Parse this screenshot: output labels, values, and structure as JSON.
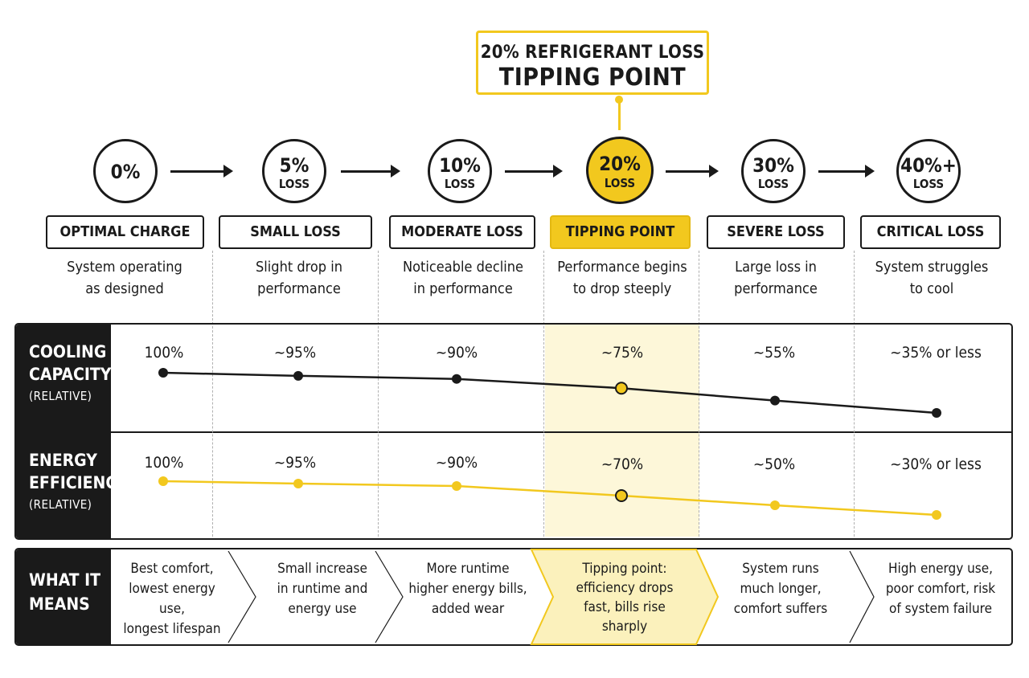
{
  "callout": {
    "line1": "20% REFRIGERANT LOSS",
    "line2": "TIPPING POINT"
  },
  "stages": [
    {
      "pct": "0%",
      "sub": "",
      "name": "OPTIMAL CHARGE",
      "desc1": "System operating",
      "desc2": "as designed",
      "cooling": "100%",
      "efficiency": "100%",
      "mean": [
        "Best comfort,",
        "lowest energy use,",
        "longest lifespan"
      ]
    },
    {
      "pct": "5%",
      "sub": "LOSS",
      "name": "SMALL LOSS",
      "desc1": "Slight drop in",
      "desc2": "performance",
      "cooling": "~95%",
      "efficiency": "~95%",
      "mean": [
        "Small increase",
        "in runtime and",
        "energy use"
      ]
    },
    {
      "pct": "10%",
      "sub": "LOSS",
      "name": "MODERATE LOSS",
      "desc1": "Noticeable decline",
      "desc2": "in performance",
      "cooling": "~90%",
      "efficiency": "~90%",
      "mean": [
        "More runtime",
        "higher energy bills,",
        "added wear"
      ]
    },
    {
      "pct": "20%",
      "sub": "LOSS",
      "name": "TIPPING POINT",
      "desc1": "Performance begins",
      "desc2": "to drop steeply",
      "cooling": "~75%",
      "efficiency": "~70%",
      "mean": [
        "Tipping point:",
        "efficiency drops",
        "fast, bills rise",
        "sharply"
      ]
    },
    {
      "pct": "30%",
      "sub": "LOSS",
      "name": "SEVERE LOSS",
      "desc1": "Large loss in",
      "desc2": "performance",
      "cooling": "~55%",
      "efficiency": "~50%",
      "mean": [
        "System runs",
        "much longer,",
        "comfort suffers"
      ]
    },
    {
      "pct": "40%+",
      "sub": "LOSS",
      "name": "CRITICAL LOSS",
      "desc1": "System struggles",
      "desc2": "to cool",
      "cooling": "~35% or less",
      "efficiency": "~30% or less",
      "mean": [
        "High energy use,",
        "poor comfort, risk",
        "of system failure"
      ]
    }
  ],
  "rows": {
    "cooling": {
      "line1": "COOLING",
      "line2": "CAPACITY",
      "line3": "(RELATIVE)"
    },
    "efficiency": {
      "line1": "ENERGY",
      "line2": "EFFICIENCY",
      "line3": "(RELATIVE)"
    },
    "means": {
      "line1": "WHAT IT",
      "line2": "MEANS"
    }
  },
  "chart_data": {
    "type": "line",
    "categories": [
      "0%",
      "5%",
      "10%",
      "20%",
      "30%",
      "40%+"
    ],
    "series": [
      {
        "name": "COOLING CAPACITY",
        "values": [
          100,
          95,
          90,
          75,
          55,
          35
        ]
      },
      {
        "name": "ENERGY EFFICIENCY",
        "values": [
          100,
          95,
          90,
          70,
          50,
          30
        ]
      }
    ]
  },
  "colors": {
    "accent": "#f2c81e",
    "dark": "#1a1a1a",
    "highlight_band": "#fdf7d9"
  },
  "icons": [
    "arrow-right-icon",
    "chevron-arrow-icon"
  ]
}
